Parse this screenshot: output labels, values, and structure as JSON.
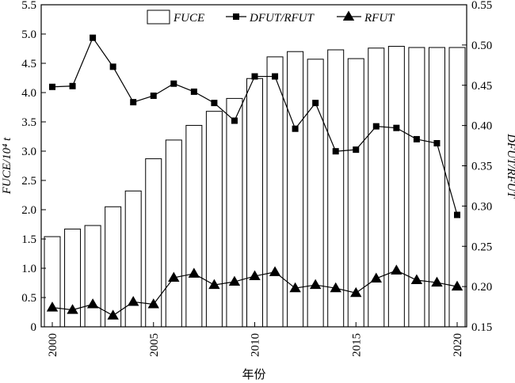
{
  "chart_data": {
    "type": "bar",
    "x": [
      2000,
      2001,
      2002,
      2003,
      2004,
      2005,
      2006,
      2007,
      2008,
      2009,
      2010,
      2011,
      2012,
      2013,
      2014,
      2015,
      2016,
      2017,
      2018,
      2019,
      2020
    ],
    "x_ticks": [
      "2000",
      "2005",
      "2010",
      "2015",
      "2020"
    ],
    "xlabel": "年份",
    "ylabel_left": "FUCE/10⁴ t",
    "ylabel_right": "DFUT/RFUT",
    "ylim_left": [
      0,
      5.5
    ],
    "ylim_right": [
      0.15,
      0.55
    ],
    "yticks_left": [
      "0",
      "0.5",
      "1.0",
      "1.5",
      "2.0",
      "2.5",
      "3.0",
      "3.5",
      "4.0",
      "4.5",
      "5.0",
      "5.5"
    ],
    "yticks_right": [
      "0.15",
      "0.20",
      "0.25",
      "0.30",
      "0.35",
      "0.40",
      "0.45",
      "0.50",
      "0.55"
    ],
    "grid": false,
    "legend_position": "top",
    "series": [
      {
        "name": "FUCE",
        "type": "bar",
        "axis": "left",
        "values": [
          1.54,
          1.67,
          1.73,
          2.05,
          2.32,
          2.87,
          3.19,
          3.44,
          3.68,
          3.9,
          4.24,
          4.61,
          4.7,
          4.57,
          4.73,
          4.58,
          4.76,
          4.79,
          4.77,
          4.77,
          4.77
        ]
      },
      {
        "name": "DFUT/RFUT",
        "type": "line",
        "marker": "square",
        "axis": "right",
        "values": [
          0.448,
          0.449,
          0.509,
          0.473,
          0.429,
          0.437,
          0.452,
          0.442,
          0.428,
          0.406,
          0.461,
          0.461,
          0.396,
          0.428,
          0.368,
          0.37,
          0.399,
          0.397,
          0.383,
          0.378,
          0.289
        ]
      },
      {
        "name": "RFUT",
        "type": "line",
        "marker": "triangle",
        "axis": "right",
        "values": [
          0.174,
          0.171,
          0.178,
          0.164,
          0.181,
          0.178,
          0.211,
          0.216,
          0.202,
          0.206,
          0.213,
          0.218,
          0.198,
          0.202,
          0.198,
          0.192,
          0.21,
          0.22,
          0.208,
          0.205,
          0.2
        ]
      }
    ]
  }
}
